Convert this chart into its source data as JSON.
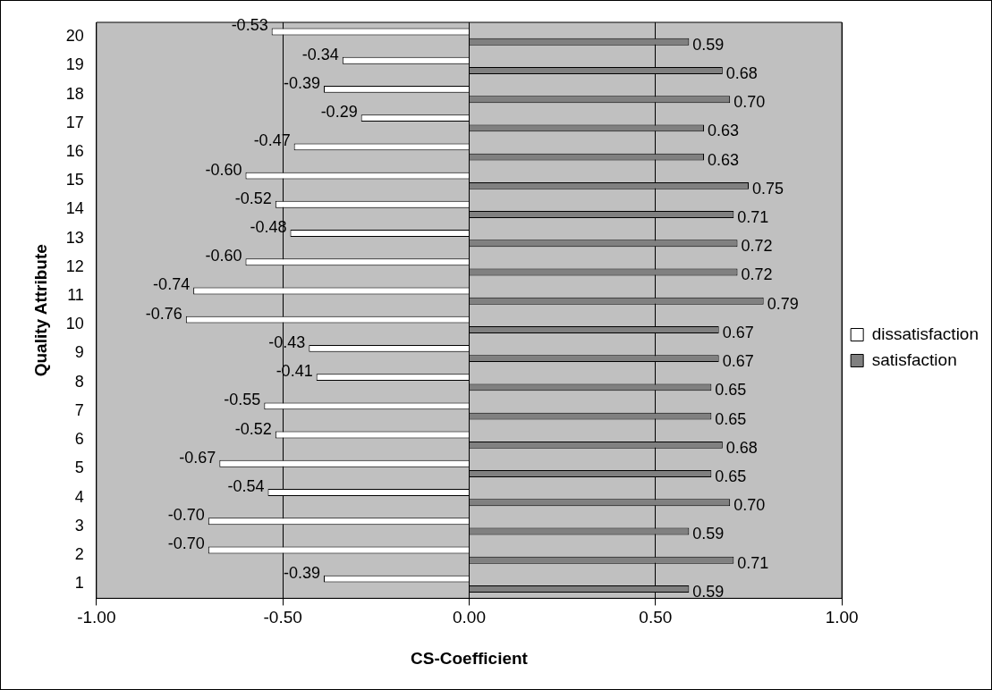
{
  "chart_data": {
    "type": "bar",
    "orientation": "horizontal",
    "xlabel": "CS-Coefficient",
    "ylabel": "Quality Attribute",
    "categories": [
      "20",
      "19",
      "18",
      "17",
      "16",
      "15",
      "14",
      "13",
      "12",
      "11",
      "10",
      "9",
      "8",
      "7",
      "6",
      "5",
      "4",
      "3",
      "2",
      "1"
    ],
    "series": [
      {
        "name": "dissatisfaction",
        "color": "#ffffff",
        "values": [
          -0.53,
          -0.34,
          -0.39,
          -0.29,
          -0.47,
          -0.6,
          -0.52,
          -0.48,
          -0.6,
          -0.74,
          -0.76,
          -0.43,
          -0.41,
          -0.55,
          -0.52,
          -0.67,
          -0.54,
          -0.7,
          -0.7,
          -0.39
        ],
        "value_labels": [
          "-0.53",
          "-0.34",
          "-0.39",
          "-0.29",
          "-0.47",
          "-0.60",
          "-0.52",
          "-0.48",
          "-0.60",
          "-0.74",
          "-0.76",
          "-0.43",
          "-0.41",
          "-0.55",
          "-0.52",
          "-0.67",
          "-0.54",
          "-0.70",
          "-0.70",
          "-0.39"
        ]
      },
      {
        "name": "satisfaction",
        "color": "#808080",
        "values": [
          0.59,
          0.68,
          0.7,
          0.63,
          0.63,
          0.75,
          0.71,
          0.72,
          0.72,
          0.79,
          0.67,
          0.67,
          0.65,
          0.65,
          0.68,
          0.65,
          0.7,
          0.59,
          0.71,
          0.59
        ],
        "value_labels": [
          "0.59",
          "0.68",
          "0.70",
          "0.63",
          "0.63",
          "0.75",
          "0.71",
          "0.72",
          "0.72",
          "0.79",
          "0.67",
          "0.67",
          "0.65",
          "0.65",
          "0.68",
          "0.65",
          "0.70",
          "0.59",
          "0.71",
          "0.59"
        ]
      }
    ],
    "xlim": [
      -1,
      1
    ],
    "xticks": [
      {
        "value": -1,
        "label": "-1.00"
      },
      {
        "value": -0.5,
        "label": "-0.50"
      },
      {
        "value": 0,
        "label": "0.00"
      },
      {
        "value": 0.5,
        "label": "0.50"
      },
      {
        "value": 1,
        "label": "1.00"
      }
    ],
    "grid": "x",
    "legend": "right"
  }
}
